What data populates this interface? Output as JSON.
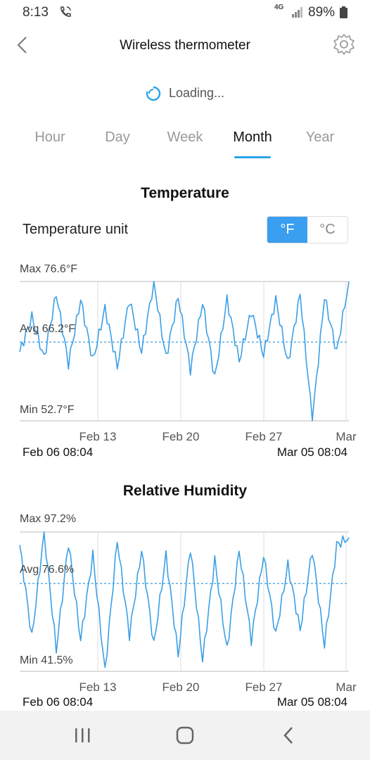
{
  "status_bar": {
    "time": "8:13",
    "network": "4G",
    "battery": "89%"
  },
  "app_bar": {
    "title": "Wireless thermometer"
  },
  "loading": {
    "text": "Loading..."
  },
  "tabs": [
    {
      "label": "Hour"
    },
    {
      "label": "Day"
    },
    {
      "label": "Week"
    },
    {
      "label": "Month",
      "active": true
    },
    {
      "label": "Year"
    }
  ],
  "temperature": {
    "section_title": "Temperature",
    "unit_label": "Temperature unit",
    "unit_f": "°F",
    "unit_c": "°C",
    "selected_unit": "°F"
  },
  "humidity": {
    "section_title": "Relative Humidity"
  },
  "colors": {
    "accent": "#2aa4e6",
    "series": "#3a9fe6"
  },
  "chart_data": [
    {
      "type": "line",
      "max_label": "Max 76.6°F",
      "avg_label": "Avg 66.2°F",
      "min_label": "Min 52.7°F",
      "ylim": [
        52.7,
        76.6
      ],
      "average": 66.2,
      "x_ticks": [
        "Feb 13",
        "Feb 20",
        "Feb 27",
        "Mar"
      ],
      "range_start": "Feb 06 08:04",
      "range_end": "Mar 05 08:04",
      "grid": true,
      "series": [
        {
          "x": [
            "Feb 06",
            "Feb 07",
            "Feb 08",
            "Feb 09",
            "Feb 10",
            "Feb 11",
            "Feb 12",
            "Feb 13",
            "Feb 14",
            "Feb 15",
            "Feb 16",
            "Feb 17",
            "Feb 18",
            "Feb 19",
            "Feb 20",
            "Feb 21",
            "Feb 22",
            "Feb 23",
            "Feb 24",
            "Feb 25",
            "Feb 26",
            "Feb 27",
            "Feb 28",
            "Mar 01",
            "Mar 02",
            "Mar 03",
            "Mar 04",
            "Mar 05"
          ],
          "values": [
            64.5,
            70.5,
            63.5,
            74.5,
            62.5,
            73.5,
            63.0,
            72.0,
            62.0,
            73.5,
            64.5,
            76.5,
            63.5,
            74.0,
            61.5,
            73.0,
            60.0,
            73.5,
            63.0,
            71.5,
            64.0,
            73.5,
            62.5,
            74.5,
            52.7,
            74.0,
            64.5,
            76.6
          ]
        }
      ]
    },
    {
      "type": "line",
      "max_label": "Max 97.2%",
      "avg_label": "Avg 76.6%",
      "min_label": "Min 41.5%",
      "ylim": [
        41.5,
        97.2
      ],
      "average": 76.6,
      "x_ticks": [
        "Feb 13",
        "Feb 20",
        "Feb 27",
        "Mar"
      ],
      "range_start": "Feb 06 08:04",
      "range_end": "Mar 05 08:04",
      "grid": true,
      "series": [
        {
          "x": [
            "Feb 06",
            "Feb 07",
            "Feb 08",
            "Feb 09",
            "Feb 10",
            "Feb 11",
            "Feb 12",
            "Feb 13",
            "Feb 14",
            "Feb 15",
            "Feb 16",
            "Feb 17",
            "Feb 18",
            "Feb 19",
            "Feb 20",
            "Feb 21",
            "Feb 22",
            "Feb 23",
            "Feb 24",
            "Feb 25",
            "Feb 26",
            "Feb 27",
            "Feb 28",
            "Mar 01",
            "Mar 02",
            "Mar 03",
            "Mar 04",
            "Mar 05"
          ],
          "values": [
            92.0,
            55.0,
            97.2,
            50.0,
            93.0,
            54.0,
            88.0,
            41.5,
            94.0,
            56.0,
            90.0,
            52.0,
            88.0,
            48.0,
            91.0,
            46.0,
            86.0,
            50.0,
            90.0,
            54.0,
            88.0,
            56.0,
            84.0,
            58.0,
            90.0,
            52.0,
            92.0,
            95.0
          ]
        }
      ]
    }
  ]
}
